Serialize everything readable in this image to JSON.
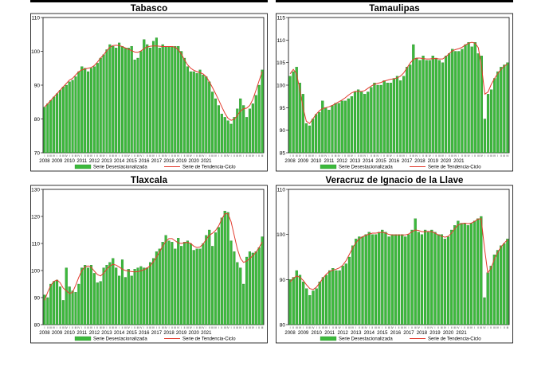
{
  "colors": {
    "bar": "#3cb93c",
    "bar_edge": "#1f7a1f",
    "trend": "#e23b2e",
    "frame": "#000000"
  },
  "legend": {
    "bars": "Serie Desestacionalizada",
    "trend": "Serie de Tendencia-Ciclo"
  },
  "years": [
    "2008",
    "2009",
    "2010",
    "2011",
    "2012",
    "2013",
    "2014",
    "2015",
    "2016",
    "2017",
    "2018",
    "2019",
    "2020",
    "2021"
  ],
  "chart_data": [
    {
      "type": "bar",
      "title": "Tabasco",
      "ylim": [
        70,
        110
      ],
      "yticks": [
        70,
        80,
        90,
        100,
        110
      ],
      "values": [
        83.5,
        84.5,
        85.5,
        86.5,
        87.5,
        88.5,
        89.5,
        90,
        91,
        91.5,
        92.5,
        94,
        95.5,
        95,
        94,
        95,
        95.5,
        96.5,
        98,
        99,
        100.5,
        102,
        101.5,
        101,
        102.5,
        101.5,
        101,
        101,
        101.5,
        97.5,
        98,
        100,
        103.5,
        102,
        101,
        103,
        104,
        101,
        102,
        101.5,
        101.5,
        101.5,
        101.5,
        101.5,
        100,
        98,
        95.5,
        94,
        94,
        93.5,
        94.5,
        93,
        92.5,
        91,
        88,
        86,
        84,
        81.5,
        80.5,
        79.5,
        78.5,
        80.5,
        83,
        86,
        84,
        80.5,
        83,
        84.5,
        87,
        90,
        94.5
      ],
      "trend": [
        83.5,
        84.5,
        85.5,
        86.5,
        87.5,
        88.5,
        89.5,
        90.5,
        91.5,
        92,
        93,
        94,
        94.5,
        94.8,
        95,
        95.2,
        95.8,
        96.8,
        98,
        99,
        100.2,
        101.2,
        101.7,
        101.8,
        101.7,
        101.4,
        101,
        100.6,
        100.2,
        99.8,
        99.7,
        100.1,
        100.8,
        101.3,
        101.5,
        101.6,
        101.6,
        101.5,
        101.4,
        101.4,
        101.4,
        101.4,
        101.2,
        100.5,
        99.2,
        97.5,
        96,
        95,
        94.4,
        94,
        93.7,
        93.3,
        92.5,
        91,
        89.3,
        87.5,
        85.6,
        83.6,
        81.7,
        80.2,
        79.6,
        79.9,
        81,
        82.3,
        83,
        83.2,
        84,
        85.8,
        88.5,
        91.3,
        94
      ]
    },
    {
      "type": "bar",
      "title": "Tamaulipas",
      "ylim": [
        85,
        115
      ],
      "yticks": [
        85,
        90,
        95,
        100,
        105,
        110,
        115
      ],
      "values": [
        102,
        103,
        104,
        100.5,
        98,
        91.5,
        91,
        92.5,
        93.5,
        94,
        96.5,
        95,
        94.5,
        95.5,
        96,
        96,
        96.5,
        96.5,
        97,
        97.5,
        98.5,
        99,
        98.5,
        98,
        98.5,
        99.5,
        100.5,
        100,
        100,
        101,
        100.5,
        100.5,
        101.5,
        102,
        101,
        102,
        104,
        104.5,
        109,
        106,
        105.5,
        106.5,
        105.5,
        105.5,
        106.5,
        106,
        105.5,
        105,
        106.5,
        107,
        108,
        107.5,
        107.5,
        108,
        109,
        109.5,
        108.5,
        109.5,
        107,
        106.5,
        92.5,
        98,
        99,
        101.5,
        103,
        104,
        104.5,
        105
      ],
      "trend": [
        102.5,
        103.5,
        102.5,
        99,
        95,
        92,
        91.5,
        92.5,
        93.5,
        94.3,
        94.8,
        95,
        95.2,
        95.5,
        95.9,
        96.3,
        96.7,
        97.2,
        97.8,
        98.3,
        98.6,
        98.6,
        98.6,
        98.8,
        99.3,
        99.8,
        100.2,
        100.4,
        100.6,
        100.9,
        101.1,
        101.3,
        101.4,
        101.6,
        102,
        102.7,
        103.8,
        104.9,
        105.7,
        106,
        106,
        105.9,
        105.8,
        105.8,
        105.9,
        105.9,
        105.8,
        105.8,
        106.3,
        107,
        107.6,
        107.9,
        108.1,
        108.4,
        108.9,
        109.3,
        109.5,
        109.3,
        108.3,
        104,
        98,
        98.5,
        100.2,
        101.5,
        102.6,
        103.5,
        104.2,
        104.7
      ]
    },
    {
      "type": "bar",
      "title": "Tlaxcala",
      "ylim": [
        80,
        130
      ],
      "yticks": [
        80,
        90,
        100,
        110,
        120,
        130
      ],
      "values": [
        91,
        90,
        95,
        96,
        96.5,
        94,
        89,
        101,
        94,
        92.5,
        92,
        95,
        101,
        102,
        101,
        102,
        99,
        95.5,
        96,
        101,
        102,
        103,
        104.5,
        101,
        98,
        104,
        97.5,
        100.5,
        98,
        100.5,
        101,
        101.5,
        101,
        101,
        103,
        104.5,
        107,
        108,
        110.5,
        113,
        111,
        110.5,
        108,
        112,
        109,
        110.5,
        111,
        110,
        107.5,
        108,
        108,
        110,
        113,
        115,
        109,
        114,
        116,
        119.5,
        122,
        121.5,
        111,
        107,
        103,
        101,
        95,
        105,
        107,
        106.5,
        107,
        108.5,
        112.5
      ],
      "trend": [
        89,
        92,
        94.5,
        96,
        96.5,
        95.5,
        93.5,
        92.5,
        91.5,
        92,
        94.5,
        97.5,
        100,
        101.3,
        101.7,
        101.2,
        99.8,
        98.5,
        98,
        99,
        100.5,
        101.7,
        102.3,
        102,
        101.3,
        100.5,
        100,
        99.8,
        99.6,
        99.5,
        99.6,
        99.9,
        100.3,
        100.9,
        101.8,
        103.2,
        105,
        107,
        109,
        110.8,
        111.8,
        111.8,
        111,
        110.2,
        110,
        110.3,
        110.4,
        110,
        109,
        108.5,
        108.7,
        109.8,
        111.5,
        113,
        113.8,
        114.8,
        116.5,
        119,
        121,
        121,
        118,
        113,
        108,
        104.5,
        103,
        103.5,
        104.5,
        105.5,
        106.8,
        108.5,
        110.5
      ]
    },
    {
      "type": "bar",
      "title": "Veracruz de Ignacio de la Llave",
      "ylim": [
        80,
        110
      ],
      "yticks": [
        80,
        90,
        100,
        110
      ],
      "values": [
        90,
        90.5,
        92,
        91,
        89.5,
        88,
        86.5,
        87.5,
        88,
        89.5,
        90.5,
        91,
        92,
        92.5,
        92,
        92,
        93,
        93.5,
        95,
        97.5,
        99,
        99.5,
        99.5,
        100,
        100.5,
        100,
        100,
        100.5,
        101,
        100.5,
        99.5,
        100,
        100,
        100,
        100,
        99.5,
        100,
        101,
        103.5,
        100.5,
        100,
        101,
        100.5,
        101,
        100.5,
        100,
        100,
        99,
        99.5,
        101,
        102,
        103,
        102.5,
        102.5,
        102,
        102.5,
        103,
        103.5,
        104,
        86,
        91.5,
        93,
        95.5,
        96.5,
        97.5,
        98,
        99
      ],
      "trend": [
        89.5,
        90.3,
        90.8,
        90.5,
        89.8,
        88.8,
        88,
        87.8,
        88.3,
        89.3,
        90.3,
        91.2,
        91.8,
        92.1,
        92.3,
        92.6,
        93.2,
        94.2,
        95.6,
        97,
        98.2,
        99,
        99.5,
        99.8,
        100.1,
        100.3,
        100.3,
        100.4,
        100.5,
        100.3,
        100,
        99.9,
        99.9,
        99.9,
        99.9,
        99.9,
        100.1,
        100.6,
        101,
        100.9,
        100.6,
        100.6,
        100.7,
        100.6,
        100.3,
        99.9,
        99.6,
        99.4,
        99.6,
        100.3,
        101.3,
        102.1,
        102.4,
        102.5,
        102.4,
        102.5,
        102.9,
        103.4,
        103.5,
        97,
        91.5,
        92.5,
        94.5,
        96,
        97.2,
        98.1,
        98.8
      ]
    }
  ]
}
